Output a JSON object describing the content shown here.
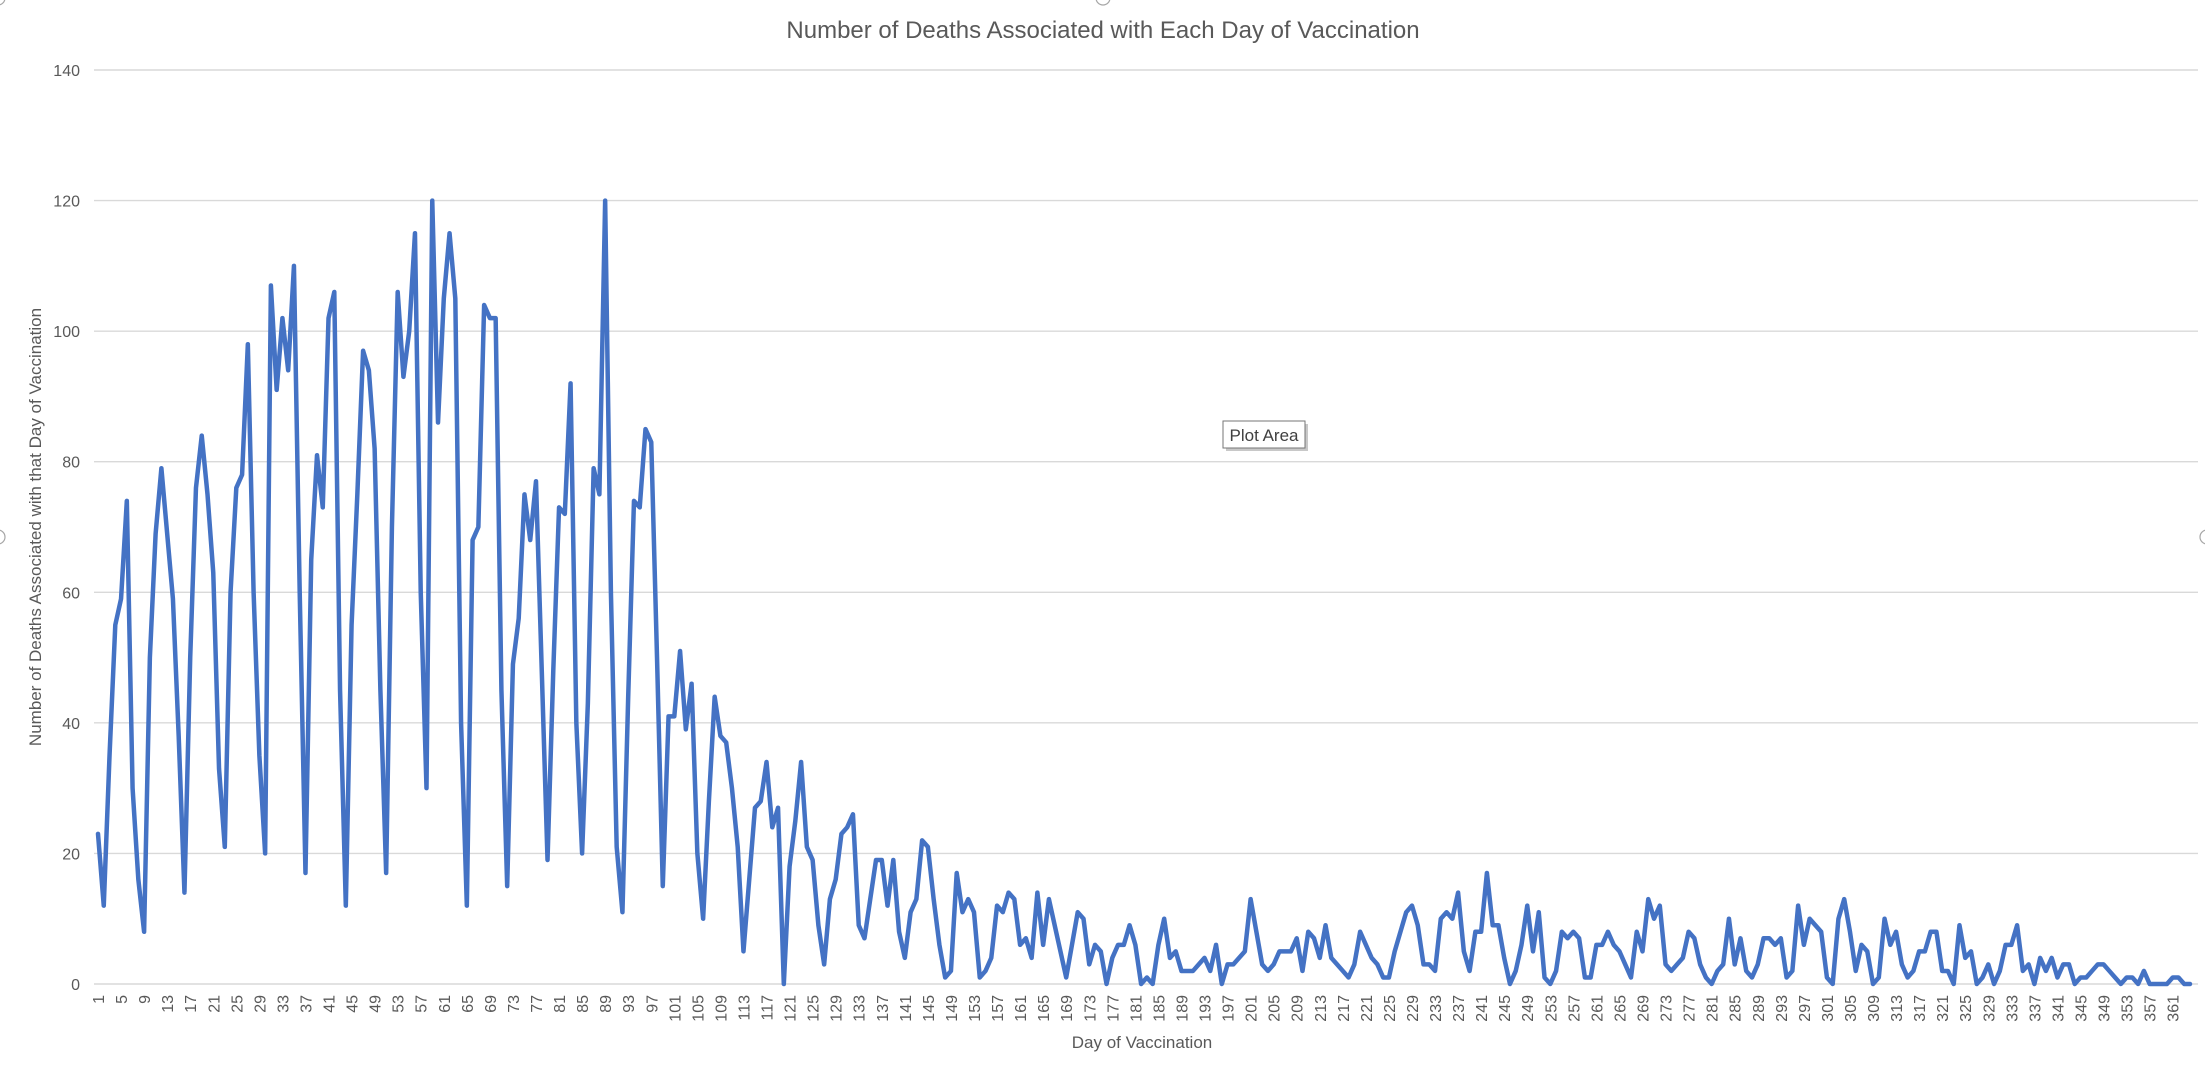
{
  "chart_data": {
    "type": "line",
    "title": "Number of Deaths Associated with Each Day of Vaccination",
    "xlabel": "Day of Vaccination",
    "ylabel": "Number of Deaths Associated with that Day of Vaccination",
    "ylim": [
      0,
      140
    ],
    "y_ticks": [
      0,
      20,
      40,
      60,
      80,
      100,
      120,
      140
    ],
    "x_range": [
      1,
      364
    ],
    "x_tick_start": 1,
    "x_tick_step": 4,
    "grid": true,
    "legend": "none",
    "series": [
      {
        "name": "Deaths",
        "color": "#4472c4",
        "x": [
          1,
          2,
          3,
          4,
          5,
          6,
          7,
          8,
          9,
          10,
          11,
          12,
          13,
          14,
          15,
          16,
          17,
          18,
          19,
          20,
          21,
          22,
          23,
          24,
          25,
          26,
          27,
          28,
          29,
          30,
          31,
          32,
          33,
          34,
          35,
          36,
          37,
          38,
          39,
          40,
          41,
          42,
          43,
          44,
          45,
          46,
          47,
          48,
          49,
          50,
          51,
          52,
          53,
          54,
          55,
          56,
          57,
          58,
          59,
          60,
          61,
          62,
          63,
          64,
          65,
          66,
          67,
          68,
          69,
          70,
          71,
          72,
          73,
          74,
          75,
          76,
          77,
          78,
          79,
          80,
          81,
          82,
          83,
          84,
          85,
          86,
          87,
          88,
          89,
          90,
          91,
          92,
          93,
          94,
          95,
          96,
          97,
          98,
          99,
          100,
          101,
          102,
          103,
          104,
          105,
          106,
          107,
          108,
          109,
          110,
          111,
          112,
          113,
          114,
          115,
          116,
          117,
          118,
          119,
          120,
          121,
          122,
          123,
          124,
          125,
          126,
          127,
          128,
          129,
          130,
          131,
          132,
          133,
          134,
          135,
          136,
          137,
          138,
          139,
          140,
          141,
          142,
          143,
          144,
          145,
          146,
          147,
          148,
          149,
          150,
          151,
          152,
          153,
          154,
          155,
          156,
          157,
          158,
          159,
          160,
          161,
          162,
          163,
          164,
          165,
          166,
          167,
          168,
          169,
          170,
          171,
          172,
          173,
          174,
          175,
          176,
          177,
          178,
          179,
          180,
          181,
          182,
          183,
          184,
          185,
          186,
          187,
          188,
          189,
          190,
          191,
          192,
          193,
          194,
          195,
          196,
          197,
          198,
          199,
          200,
          201,
          202,
          203,
          204,
          205,
          206,
          207,
          208,
          209,
          210,
          211,
          212,
          213,
          214,
          215,
          216,
          217,
          218,
          219,
          220,
          221,
          222,
          223,
          224,
          225,
          226,
          227,
          228,
          229,
          230,
          231,
          232,
          233,
          234,
          235,
          236,
          237,
          238,
          239,
          240,
          241,
          242,
          243,
          244,
          245,
          246,
          247,
          248,
          249,
          250,
          251,
          252,
          253,
          254,
          255,
          256,
          257,
          258,
          259,
          260,
          261,
          262,
          263,
          264,
          265,
          266,
          267,
          268,
          269,
          270,
          271,
          272,
          273,
          274,
          275,
          276,
          277,
          278,
          279,
          280,
          281,
          282,
          283,
          284,
          285,
          286,
          287,
          288,
          289,
          290,
          291,
          292,
          293,
          294,
          295,
          296,
          297,
          298,
          299,
          300,
          301,
          302,
          303,
          304,
          305,
          306,
          307,
          308,
          309,
          310,
          311,
          312,
          313,
          314,
          315,
          316,
          317,
          318,
          319,
          320,
          321,
          322,
          323,
          324,
          325,
          326,
          327,
          328,
          329,
          330,
          331,
          332,
          333,
          334,
          335,
          336,
          337,
          338,
          339,
          340,
          341,
          342,
          343,
          344,
          345,
          346,
          347,
          348,
          349,
          350,
          351,
          352,
          353,
          354,
          355,
          356,
          357,
          358,
          359,
          360,
          361,
          362,
          363,
          364
        ],
        "values": [
          23,
          12,
          35,
          55,
          59,
          74,
          30,
          16,
          8,
          50,
          69,
          79,
          69,
          59,
          38,
          14,
          50,
          76,
          84,
          75,
          63,
          33,
          21,
          60,
          76,
          78,
          98,
          60,
          35,
          20,
          107,
          91,
          102,
          94,
          110,
          60,
          17,
          65,
          81,
          73,
          102,
          106,
          45,
          12,
          55,
          75,
          97,
          94,
          82,
          45,
          17,
          70,
          106,
          93,
          100,
          115,
          60,
          30,
          120,
          86,
          105,
          115,
          105,
          40,
          12,
          68,
          70,
          104,
          102,
          102,
          45,
          15,
          49,
          56,
          75,
          68,
          77,
          48,
          19,
          48,
          73,
          72,
          92,
          40,
          20,
          43,
          79,
          75,
          120,
          60,
          21,
          11,
          44,
          74,
          73,
          85,
          83,
          50,
          15,
          41,
          41,
          51,
          39,
          46,
          20,
          10,
          28,
          44,
          38,
          37,
          30,
          21,
          5,
          16,
          27,
          28,
          34,
          24,
          27,
          0,
          18,
          25,
          34,
          21,
          19,
          9,
          3,
          13,
          16,
          23,
          24,
          26,
          9,
          7,
          13,
          19,
          19,
          12,
          19,
          8,
          4,
          11,
          13,
          22,
          21,
          13,
          6,
          1,
          2,
          17,
          11,
          13,
          11,
          1,
          2,
          4,
          12,
          11,
          14,
          13,
          6,
          7,
          4,
          14,
          6,
          13,
          9,
          5,
          1,
          6,
          11,
          10,
          3,
          6,
          5,
          0,
          4,
          6,
          6,
          9,
          6,
          0,
          1,
          0,
          6,
          10,
          4,
          5,
          2,
          2,
          2,
          3,
          4,
          2,
          6,
          0,
          3,
          3,
          4,
          5,
          13,
          8,
          3,
          2,
          3,
          5,
          5,
          5,
          7,
          2,
          8,
          7,
          4,
          9,
          4,
          3,
          2,
          1,
          3,
          8,
          6,
          4,
          3,
          1,
          1,
          5,
          8,
          11,
          12,
          9,
          3,
          3,
          2,
          10,
          11,
          10,
          14,
          5,
          2,
          8,
          8,
          17,
          9,
          9,
          4,
          0,
          2,
          6,
          12,
          5,
          11,
          1,
          0,
          2,
          8,
          7,
          8,
          7,
          1,
          1,
          6,
          6,
          8,
          6,
          5,
          3,
          1,
          8,
          5,
          13,
          10,
          12,
          3,
          2,
          3,
          4,
          8,
          7,
          3,
          1,
          0,
          2,
          3,
          10,
          3,
          7,
          2,
          1,
          3,
          7,
          7,
          6,
          7,
          1,
          2,
          12,
          6,
          10,
          9,
          8,
          1,
          0,
          10,
          13,
          8,
          2,
          6,
          5,
          0,
          1,
          10,
          6,
          8,
          3,
          1,
          2,
          5,
          5,
          8,
          8,
          2,
          2,
          0,
          9,
          4,
          5,
          0,
          1,
          3,
          0,
          2,
          6,
          6,
          9,
          2,
          3,
          0,
          4,
          2,
          4,
          1,
          3,
          3,
          0,
          1,
          1,
          2,
          3,
          3,
          2,
          1,
          0,
          1,
          1,
          0,
          2,
          0,
          0,
          0,
          0,
          1,
          1,
          0,
          0
        ]
      }
    ]
  },
  "overlay": {
    "tooltip_text": "Plot Area"
  }
}
